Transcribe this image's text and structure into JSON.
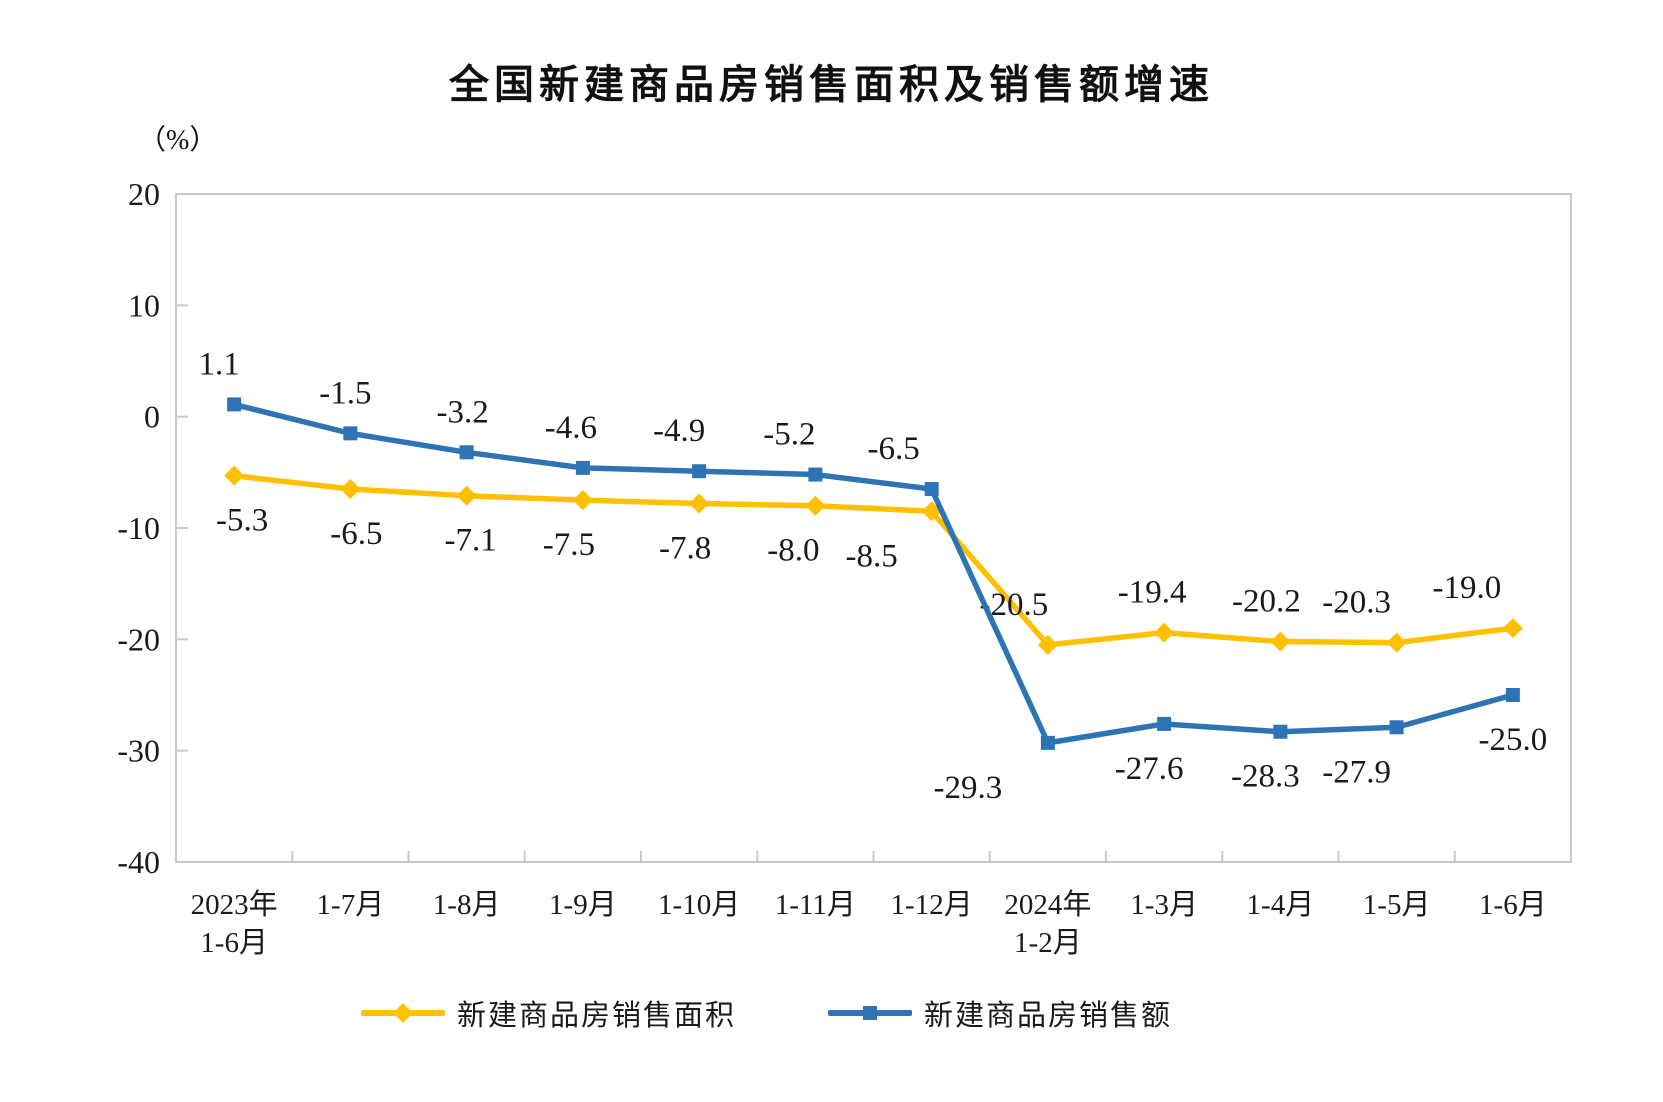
{
  "chart_data": {
    "type": "line",
    "title": "全国新建商品房销售面积及销售额增速",
    "unit_label": "（%）",
    "categories": [
      "2023年\n1-6月",
      "1-7月",
      "1-8月",
      "1-9月",
      "1-10月",
      "1-11月",
      "1-12月",
      "2024年\n1-2月",
      "1-3月",
      "1-4月",
      "1-5月",
      "1-6月"
    ],
    "series": [
      {
        "name": "新建商品房销售面积",
        "color": "#FFC000",
        "marker": "diamond",
        "values": [
          -5.3,
          -6.5,
          -7.1,
          -7.5,
          -7.8,
          -8.0,
          -8.5,
          -20.5,
          -19.4,
          -20.2,
          -20.3,
          -19.0
        ],
        "label_side": [
          "below",
          "below",
          "below",
          "below",
          "below",
          "below",
          "below",
          "above",
          "above",
          "above",
          "above",
          "above"
        ],
        "label_dx": [
          8,
          6,
          4,
          -14,
          -14,
          -22,
          -60,
          -34,
          -12,
          -14,
          -40,
          -46
        ]
      },
      {
        "name": "新建商品房销售额",
        "color": "#2E74B5",
        "marker": "square",
        "values": [
          1.1,
          -1.5,
          -3.2,
          -4.6,
          -4.9,
          -5.2,
          -6.5,
          -29.3,
          -27.6,
          -28.3,
          -27.9,
          -25.0
        ],
        "label_side": [
          "above",
          "above",
          "above",
          "above",
          "above",
          "above",
          "above",
          "below",
          "below",
          "below",
          "below",
          "below"
        ],
        "label_dx": [
          -15,
          -5,
          -4,
          -12,
          -20,
          -26,
          -38,
          -80,
          -15,
          -15,
          -40,
          0
        ]
      }
    ],
    "ylim": [
      -40,
      20
    ],
    "yticks": [
      20,
      10,
      0,
      -10,
      -20,
      -30,
      -40
    ],
    "grid": false,
    "legend_position": "bottom",
    "axis_color": "#c9c9c9",
    "text_color": "#1a1a1a"
  }
}
